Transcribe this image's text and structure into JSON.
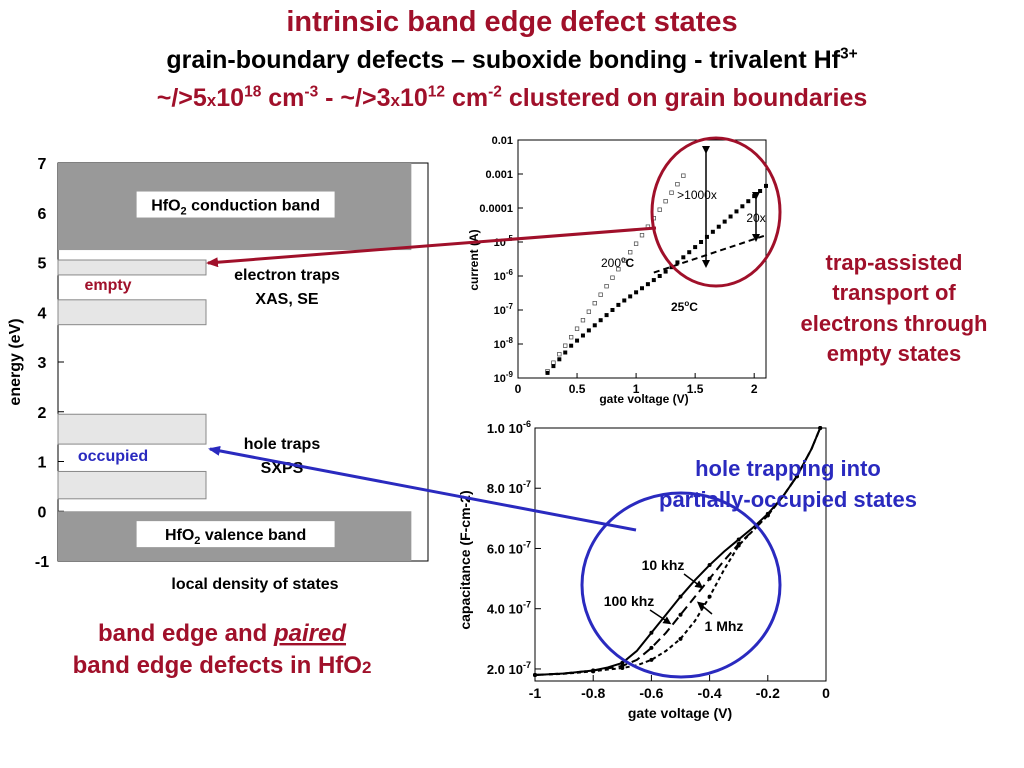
{
  "title": {
    "line1": "intrinsic band edge defect states",
    "line2_a": "grain-boundary defects – suboxide bonding - trivalent Hf",
    "line2_sup": "3+",
    "line3": {
      "p1": "~/>5",
      "x1": "x",
      "p2": "10",
      "s1": "18",
      "p3": " cm",
      "s2": "-3",
      "p4": " - ~/>3",
      "x2": "x",
      "p5": "10",
      "s3": "12",
      "p6": " cm",
      "s4": "-2",
      "p7": " clustered on grain boundaries"
    }
  },
  "colors": {
    "accent_red": "#a0102a",
    "accent_blue": "#2a2abf",
    "band_dark": "#999999",
    "band_light": "#e6e6e6"
  },
  "chart_data": [
    {
      "type": "bar",
      "name": "energy-band-diagram",
      "ylabel": "energy (eV)",
      "xlabel": "local density of states",
      "yticks": [
        "7",
        "6",
        "5",
        "4",
        "3",
        "2",
        "1",
        "0",
        "-1"
      ],
      "ylim": [
        -1,
        7
      ],
      "bands": [
        {
          "label": "HfO",
          "sub": "2",
          "suffix": " conduction band",
          "y_from": 5.25,
          "y_to": 7.0,
          "dos": 1.0,
          "kind": "dark"
        },
        {
          "label": "HfO",
          "sub": "2",
          "suffix": " valence band",
          "y_from": -1.0,
          "y_to": 0.0,
          "dos": 1.0,
          "kind": "dark"
        }
      ],
      "defect_levels": [
        {
          "y_from": 4.75,
          "y_to": 5.05,
          "dos": 0.4
        },
        {
          "y_from": 3.75,
          "y_to": 4.25,
          "dos": 0.4
        },
        {
          "y_from": 1.35,
          "y_to": 1.95,
          "dos": 0.4
        },
        {
          "y_from": 0.25,
          "y_to": 0.8,
          "dos": 0.4
        }
      ],
      "annotations": {
        "empty": "empty",
        "occupied": "occupied",
        "electron_traps_1": "electron traps",
        "electron_traps_2": "XAS, SE",
        "hole_traps_1": "hole traps",
        "hole_traps_2": "SXPS"
      }
    },
    {
      "type": "scatter",
      "name": "current-vs-gate-voltage",
      "xlabel": "gate voltage (V)",
      "ylabel": "current (A)",
      "xlim": [
        0,
        2.1
      ],
      "ylim_log10": [
        -9,
        -2
      ],
      "log_y": true,
      "xticks": [
        "0",
        "0.5",
        "1",
        "1.5",
        "2"
      ],
      "yticks": [
        {
          "text": "0.01"
        },
        {
          "text": "0.001"
        },
        {
          "text": "0.0001"
        },
        {
          "base": "10",
          "exp": "-5"
        },
        {
          "base": "10",
          "exp": "-6"
        },
        {
          "base": "10",
          "exp": "-7"
        },
        {
          "base": "10",
          "exp": "-8"
        },
        {
          "base": "10",
          "exp": "-9"
        }
      ],
      "series": [
        {
          "name": "200°C",
          "marker": "open",
          "x": [
            0.25,
            0.3,
            0.35,
            0.4,
            0.45,
            0.5,
            0.55,
            0.6,
            0.65,
            0.7,
            0.75,
            0.8,
            0.85,
            0.9,
            0.95,
            1.0,
            1.05,
            1.1,
            1.15,
            1.2,
            1.25,
            1.3,
            1.35,
            1.4
          ],
          "log10y": [
            -8.8,
            -8.55,
            -8.3,
            -8.05,
            -7.8,
            -7.55,
            -7.3,
            -7.05,
            -6.8,
            -6.55,
            -6.3,
            -6.05,
            -5.8,
            -5.55,
            -5.3,
            -5.05,
            -4.8,
            -4.55,
            -4.3,
            -4.05,
            -3.8,
            -3.55,
            -3.3,
            -3.05
          ]
        },
        {
          "name": "25°C",
          "marker": "filled",
          "x": [
            0.25,
            0.3,
            0.35,
            0.4,
            0.45,
            0.5,
            0.55,
            0.6,
            0.65,
            0.7,
            0.75,
            0.8,
            0.85,
            0.9,
            0.95,
            1.0,
            1.05,
            1.1,
            1.15,
            1.2,
            1.25,
            1.3,
            1.35,
            1.4,
            1.45,
            1.5,
            1.55,
            1.6,
            1.65,
            1.7,
            1.75,
            1.8,
            1.85,
            1.9,
            1.95,
            2.0,
            2.05,
            2.1
          ],
          "log10y": [
            -8.85,
            -8.65,
            -8.45,
            -8.25,
            -8.05,
            -7.9,
            -7.75,
            -7.6,
            -7.45,
            -7.3,
            -7.15,
            -7.0,
            -6.85,
            -6.72,
            -6.6,
            -6.48,
            -6.36,
            -6.24,
            -6.12,
            -6.0,
            -5.87,
            -5.74,
            -5.6,
            -5.45,
            -5.3,
            -5.15,
            -5.0,
            -4.85,
            -4.7,
            -4.55,
            -4.4,
            -4.25,
            -4.1,
            -3.95,
            -3.8,
            -3.65,
            -3.5,
            -3.35
          ]
        }
      ],
      "fit_line": {
        "x": [
          1.15,
          2.1
        ],
        "log10y": [
          -5.9,
          -4.8
        ]
      },
      "labels": {
        "t200": "200",
        "t200_unit": "C",
        "t25": "25",
        "t25_unit": "C",
        "ratio_big": ">1000x",
        "ratio_small": "20x"
      },
      "deg_symbol": "o"
    },
    {
      "type": "line",
      "name": "capacitance-vs-gate-voltage",
      "xlabel": "gate voltage (V)",
      "ylabel": "capacitance (F-cm-2)",
      "xlim": [
        -1,
        0
      ],
      "ylim": [
        1.6e-07,
        1e-06
      ],
      "xticks": [
        "-1",
        "-0.8",
        "-0.6",
        "-0.4",
        "-0.2",
        "0"
      ],
      "yticks": [
        {
          "value": 1e-06,
          "mant": "1.0 10",
          "exp": "-6"
        },
        {
          "value": 8e-07,
          "mant": "8.0 10",
          "exp": "-7"
        },
        {
          "value": 6e-07,
          "mant": "6.0 10",
          "exp": "-7"
        },
        {
          "value": 4e-07,
          "mant": "4.0 10",
          "exp": "-7"
        },
        {
          "value": 2e-07,
          "mant": "2.0 10",
          "exp": "-7"
        }
      ],
      "series": [
        {
          "name": "10 khz",
          "x": [
            -1.0,
            -0.9,
            -0.8,
            -0.75,
            -0.7,
            -0.65,
            -0.6,
            -0.55,
            -0.5,
            -0.45,
            -0.4,
            -0.35,
            -0.3,
            -0.25,
            -0.2,
            -0.15,
            -0.1,
            -0.05,
            -0.02
          ],
          "y": [
            1.8e-07,
            1.85e-07,
            1.95e-07,
            2.05e-07,
            2.2e-07,
            2.6e-07,
            3.2e-07,
            3.8e-07,
            4.4e-07,
            4.95e-07,
            5.45e-07,
            5.9e-07,
            6.3e-07,
            6.7e-07,
            7.15e-07,
            7.7e-07,
            8.4e-07,
            9.3e-07,
            1e-06
          ]
        },
        {
          "name": "100 khz",
          "x": [
            -1.0,
            -0.9,
            -0.8,
            -0.75,
            -0.7,
            -0.65,
            -0.6,
            -0.55,
            -0.5,
            -0.45,
            -0.4,
            -0.35,
            -0.3,
            -0.25,
            -0.2,
            -0.15,
            -0.1,
            -0.05,
            -0.02
          ],
          "y": [
            1.8e-07,
            1.85e-07,
            1.95e-07,
            2.02e-07,
            2.1e-07,
            2.3e-07,
            2.7e-07,
            3.2e-07,
            3.8e-07,
            4.4e-07,
            5e-07,
            5.6e-07,
            6.15e-07,
            6.6e-07,
            7.1e-07,
            7.7e-07,
            8.4e-07,
            9.3e-07,
            1e-06
          ]
        },
        {
          "name": "1 Mhz",
          "x": [
            -1.0,
            -0.9,
            -0.8,
            -0.75,
            -0.7,
            -0.65,
            -0.6,
            -0.55,
            -0.5,
            -0.45,
            -0.4,
            -0.35,
            -0.3,
            -0.25,
            -0.2,
            -0.15,
            -0.1,
            -0.05,
            -0.02
          ],
          "y": [
            1.8e-07,
            1.84e-07,
            1.92e-07,
            1.98e-07,
            2.03e-07,
            2.12e-07,
            2.3e-07,
            2.6e-07,
            3e-07,
            3.6e-07,
            4.4e-07,
            5.3e-07,
            6.1e-07,
            6.6e-07,
            7.1e-07,
            7.7e-07,
            8.4e-07,
            9.3e-07,
            1e-06
          ]
        }
      ]
    }
  ],
  "callouts": {
    "trap_assisted": [
      "trap-assisted",
      "transport of",
      "electrons through",
      "empty states"
    ],
    "hole_trapping": [
      "hole trapping into",
      "partially-occupied states"
    ],
    "band_edge": {
      "line1_a": "band edge and ",
      "line1_b": "paired",
      "line2_a": "band edge defects in HfO",
      "line2_sub": "2"
    }
  }
}
